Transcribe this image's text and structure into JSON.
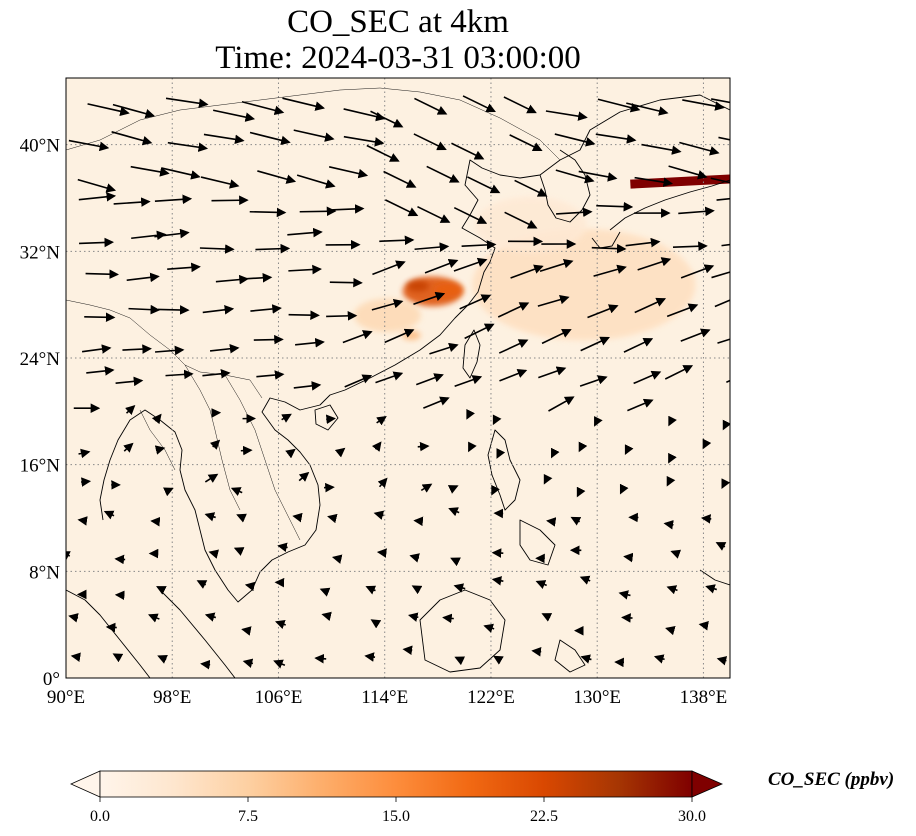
{
  "title": {
    "line1": "CO_SEC at 4km",
    "line2": "Time: 2024-03-31 03:00:00"
  },
  "map": {
    "lon_range": [
      90,
      140
    ],
    "lat_range": [
      0,
      45
    ],
    "x_ticks": [
      90,
      98,
      106,
      114,
      122,
      130,
      138
    ],
    "x_tick_labels": [
      "90°E",
      "98°E",
      "106°E",
      "114°E",
      "122°E",
      "130°E",
      "138°E"
    ],
    "y_ticks": [
      0,
      8,
      16,
      24,
      32,
      40
    ],
    "y_tick_labels": [
      "0°",
      "8°N",
      "16°N",
      "24°N",
      "32°N",
      "40°N"
    ],
    "gridlines": "dotted",
    "background_color": "#fdf1e1",
    "coastline_color": "#000000",
    "plumes": [
      {
        "lon": 117.6,
        "lat": 29.0,
        "value": 22,
        "spread": 1.6
      },
      {
        "lon": 116.5,
        "lat": 29.4,
        "value": 24,
        "spread": 0.6
      },
      {
        "lon": 118.8,
        "lat": 29.1,
        "value": 20,
        "spread": 0.8
      },
      {
        "lon": 114.2,
        "lat": 27.2,
        "value": 6,
        "spread": 1.8
      },
      {
        "lon": 116.0,
        "lat": 25.7,
        "value": 10,
        "spread": 0.5
      },
      {
        "lon": 129,
        "lat": 29.5,
        "value": 5,
        "spread": 6
      },
      {
        "lon": 125,
        "lat": 34,
        "value": 3,
        "spread": 3
      }
    ],
    "band_band": {
      "from_lon": 132.5,
      "to_lon": 140,
      "lat": 37.0,
      "value": 30
    },
    "wind_field": "westerly flow north of ~20°N, weak easterlies in the tropics"
  },
  "colorbar": {
    "label": "CO_SEC (ppbv)",
    "range": [
      0,
      30
    ],
    "ticks": [
      0,
      7.5,
      15,
      22.5,
      30
    ],
    "tick_labels": [
      "0.0",
      "7.5",
      "15.0",
      "22.5",
      "30.0"
    ],
    "colormap": [
      "#fff5eb",
      "#fee6ce",
      "#fdd0a2",
      "#fdae6b",
      "#fd8d3c",
      "#f16913",
      "#d94801",
      "#a63603",
      "#7f0000"
    ],
    "extend": "both"
  }
}
